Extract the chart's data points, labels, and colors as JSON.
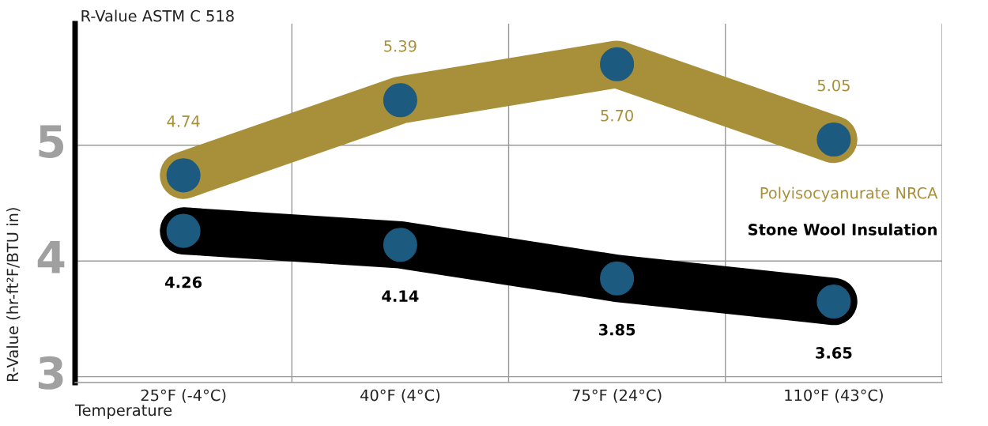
{
  "chart_data": {
    "type": "line",
    "title": "R-Value ASTM C 518",
    "xlabel": "Temperature",
    "ylabel": "R-Value (hr-ft²F/BTU in)",
    "categories": [
      "25°F (-4°C)",
      "40°F (4°C)",
      "75°F (24°C)",
      "110°F (43°C)"
    ],
    "series": [
      {
        "name": "Polyisocyanurate NRCA",
        "color": "#a8903a",
        "colors": [
          "#1d5a80",
          "#1d5a80",
          "#1d5a80",
          "#1d5a80"
        ],
        "values": [
          4.74,
          5.39,
          5.7,
          5.05
        ],
        "value_labels": [
          "4.74",
          "5.39",
          "5.70",
          "5.05"
        ]
      },
      {
        "name": "Stone Wool Insulation",
        "color": "#000000",
        "colors": [
          "#1d5a80",
          "#1d5a80",
          "#1d5a80",
          "#1d5a80"
        ],
        "values": [
          4.26,
          4.14,
          3.85,
          3.65
        ],
        "value_labels": [
          "4.26",
          "4.14",
          "3.85",
          "3.65"
        ]
      }
    ],
    "ylim": [
      2.95,
      6.05
    ],
    "yticks": [
      3,
      4,
      5
    ],
    "grid": true,
    "marker": "circle",
    "line_style": "solid",
    "legend": false
  }
}
